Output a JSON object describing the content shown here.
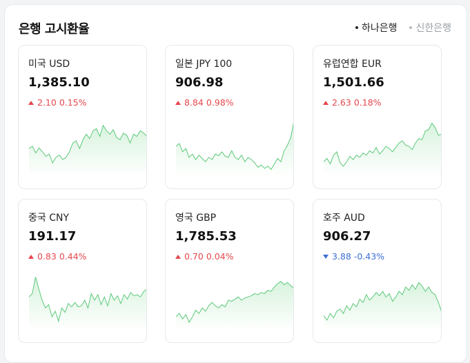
{
  "header": {
    "title": "은행 고시환율",
    "banks": [
      {
        "label": "하나은행",
        "active": true
      },
      {
        "label": "신한은행",
        "active": false
      }
    ]
  },
  "colors": {
    "up": "#e5484d",
    "down": "#3b6fd4",
    "spark_line": "#5cc87a",
    "spark_fill": "#d8f3de"
  },
  "cards": [
    {
      "name": "미국 USD",
      "rate": "1,385.10",
      "direction": "up",
      "change": "2.10",
      "pct": "0.15%",
      "series": [
        0.46,
        0.5,
        0.38,
        0.47,
        0.4,
        0.32,
        0.36,
        0.2,
        0.3,
        0.34,
        0.26,
        0.3,
        0.4,
        0.56,
        0.6,
        0.46,
        0.62,
        0.72,
        0.64,
        0.78,
        0.82,
        0.68,
        0.88,
        0.78,
        0.72,
        0.8,
        0.66,
        0.62,
        0.74,
        0.7,
        0.56,
        0.72,
        0.68,
        0.78,
        0.74,
        0.68
      ]
    },
    {
      "name": "일본 JPY 100",
      "rate": "906.98",
      "direction": "up",
      "change": "8.84",
      "pct": "0.98%",
      "series": [
        0.5,
        0.55,
        0.4,
        0.46,
        0.3,
        0.36,
        0.26,
        0.34,
        0.28,
        0.22,
        0.3,
        0.26,
        0.36,
        0.33,
        0.4,
        0.32,
        0.3,
        0.42,
        0.3,
        0.26,
        0.34,
        0.22,
        0.3,
        0.26,
        0.2,
        0.12,
        0.16,
        0.1,
        0.14,
        0.08,
        0.18,
        0.28,
        0.22,
        0.42,
        0.52,
        0.66,
        0.96
      ]
    },
    {
      "name": "유럽연합 EUR",
      "rate": "1,501.66",
      "direction": "up",
      "change": "2.63",
      "pct": "0.18%",
      "series": [
        0.22,
        0.28,
        0.18,
        0.34,
        0.4,
        0.2,
        0.14,
        0.22,
        0.32,
        0.26,
        0.34,
        0.3,
        0.38,
        0.34,
        0.42,
        0.38,
        0.48,
        0.36,
        0.42,
        0.5,
        0.46,
        0.4,
        0.48,
        0.56,
        0.6,
        0.52,
        0.5,
        0.44,
        0.56,
        0.64,
        0.62,
        0.78,
        0.8,
        0.92,
        0.84,
        0.7,
        0.72
      ]
    },
    {
      "name": "중국 CNY",
      "rate": "191.17",
      "direction": "up",
      "change": "0.83",
      "pct": "0.44%",
      "series": [
        0.56,
        0.62,
        0.92,
        0.7,
        0.5,
        0.36,
        0.42,
        0.2,
        0.3,
        0.12,
        0.36,
        0.28,
        0.44,
        0.38,
        0.46,
        0.38,
        0.4,
        0.5,
        0.36,
        0.62,
        0.5,
        0.6,
        0.42,
        0.56,
        0.4,
        0.62,
        0.5,
        0.58,
        0.44,
        0.6,
        0.52,
        0.64,
        0.58,
        0.6,
        0.56,
        0.66,
        0.7
      ]
    },
    {
      "name": "영국 GBP",
      "rate": "1,785.53",
      "direction": "up",
      "change": "0.70",
      "pct": "0.04%",
      "series": [
        0.2,
        0.26,
        0.16,
        0.24,
        0.1,
        0.2,
        0.32,
        0.26,
        0.36,
        0.3,
        0.4,
        0.46,
        0.4,
        0.36,
        0.42,
        0.38,
        0.5,
        0.48,
        0.52,
        0.56,
        0.5,
        0.54,
        0.56,
        0.58,
        0.62,
        0.6,
        0.64,
        0.62,
        0.68,
        0.66,
        0.74,
        0.8,
        0.84,
        0.78,
        0.82,
        0.76,
        0.72
      ]
    },
    {
      "name": "호주 AUD",
      "rate": "906.27",
      "direction": "down",
      "change": "3.88",
      "pct": "-0.43%",
      "series": [
        0.22,
        0.14,
        0.26,
        0.18,
        0.3,
        0.34,
        0.26,
        0.4,
        0.32,
        0.44,
        0.38,
        0.52,
        0.46,
        0.6,
        0.5,
        0.56,
        0.64,
        0.58,
        0.66,
        0.56,
        0.62,
        0.48,
        0.56,
        0.66,
        0.6,
        0.74,
        0.68,
        0.78,
        0.7,
        0.82,
        0.76,
        0.66,
        0.74,
        0.64,
        0.6,
        0.46,
        0.28
      ]
    }
  ]
}
